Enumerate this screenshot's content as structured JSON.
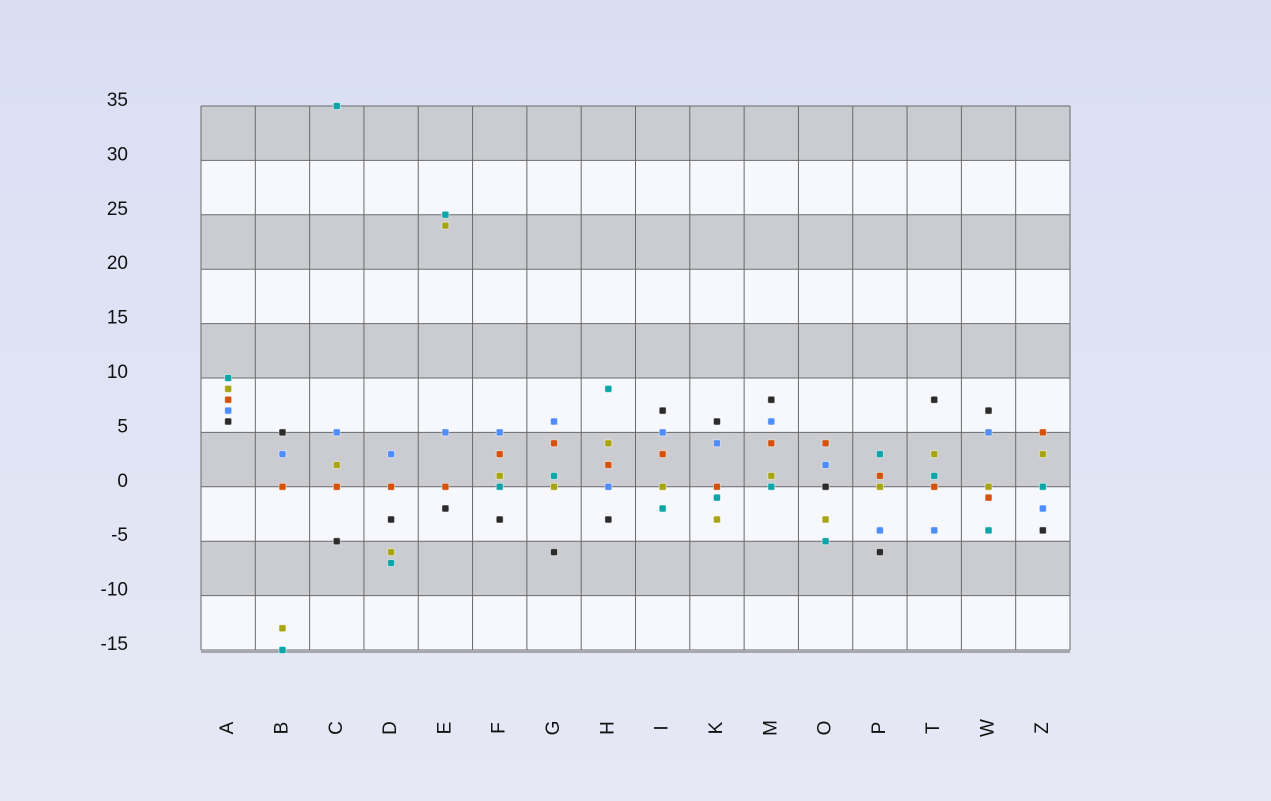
{
  "chart_data": {
    "type": "scatter",
    "title": "",
    "xlabel": "",
    "ylabel": "",
    "categories": [
      "A",
      "B",
      "C",
      "D",
      "E",
      "F",
      "G",
      "H",
      "I",
      "K",
      "M",
      "O",
      "P",
      "T",
      "W",
      "Z"
    ],
    "ylim": [
      -15,
      35
    ],
    "yticks": [
      35,
      30,
      25,
      20,
      15,
      10,
      5,
      0,
      -5,
      -10,
      -15
    ],
    "grid": true,
    "band_colors": [
      "#cbccd1",
      "#f7f8fd"
    ],
    "legend": "none",
    "series": [
      {
        "color": "#2b2b2b",
        "values": [
          6,
          5,
          -5,
          -3,
          -2,
          -3,
          -6,
          -3,
          7,
          6,
          8,
          0,
          -6,
          8,
          7,
          -4
        ]
      },
      {
        "color": "#4f8dfb",
        "values": [
          7,
          3,
          5,
          3,
          5,
          5,
          6,
          0,
          5,
          4,
          6,
          2,
          -4,
          -4,
          5,
          -2
        ]
      },
      {
        "color": "#d4520d",
        "values": [
          8,
          0,
          0,
          0,
          0,
          3,
          4,
          2,
          3,
          0,
          4,
          4,
          1,
          0,
          -1,
          5
        ]
      },
      {
        "color": "#a8a515",
        "values": [
          9,
          -13,
          2,
          -6,
          24,
          1,
          0,
          4,
          0,
          -3,
          1,
          -3,
          0,
          3,
          0,
          3
        ]
      },
      {
        "color": "#0ea5a8",
        "values": [
          10,
          -15,
          35,
          -7,
          25,
          0,
          1,
          9,
          -2,
          -1,
          0,
          -5,
          3,
          1,
          -4,
          0
        ]
      }
    ]
  }
}
